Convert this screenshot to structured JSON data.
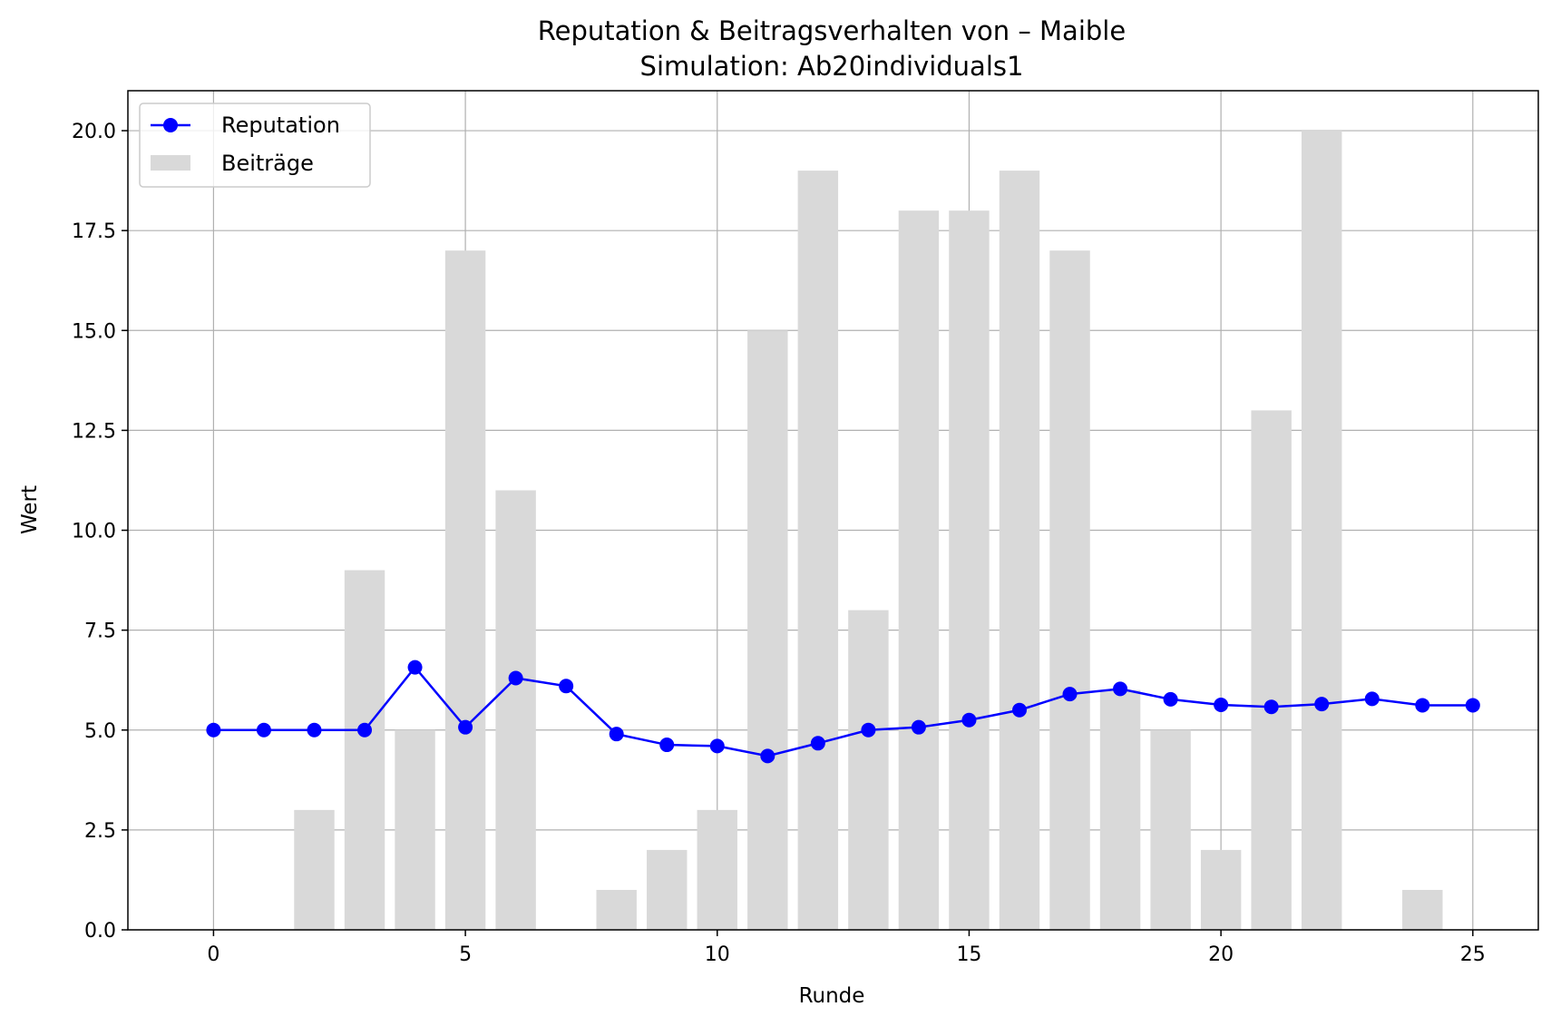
{
  "chart_data": {
    "type": "bar+line",
    "title": "Reputation & Beitragsverhalten von – Maible",
    "subtitle": "Simulation: Ab20individuals1",
    "xlabel": "Runde",
    "ylabel": "Wert",
    "xlim": [
      -1.7,
      26.3
    ],
    "ylim": [
      0,
      21
    ],
    "x_ticks": [
      0,
      5,
      10,
      15,
      20,
      25
    ],
    "y_ticks": [
      0.0,
      2.5,
      5.0,
      7.5,
      10.0,
      12.5,
      15.0,
      17.5,
      20.0
    ],
    "grid": true,
    "legend_position": "top-left",
    "x": [
      0,
      1,
      2,
      3,
      4,
      5,
      6,
      7,
      8,
      9,
      10,
      11,
      12,
      13,
      14,
      15,
      16,
      17,
      18,
      19,
      20,
      21,
      22,
      23,
      24,
      25
    ],
    "series": [
      {
        "name": "Reputation",
        "type": "line",
        "color": "#0000ff",
        "values": [
          5.0,
          5.0,
          5.0,
          5.0,
          6.57,
          5.07,
          6.3,
          6.1,
          4.9,
          4.63,
          4.6,
          4.35,
          4.67,
          5.0,
          5.07,
          5.25,
          5.5,
          5.9,
          6.03,
          5.77,
          5.63,
          5.58,
          5.65,
          5.78,
          5.62,
          5.62
        ]
      },
      {
        "name": "Beiträge",
        "type": "bar",
        "color": "#d9d9d9",
        "values": [
          0,
          0,
          3,
          9,
          5,
          17,
          11,
          0,
          1,
          2,
          3,
          15,
          19,
          8,
          18,
          18,
          19,
          17,
          6,
          5,
          2,
          13,
          20,
          0,
          1,
          0
        ]
      }
    ]
  }
}
